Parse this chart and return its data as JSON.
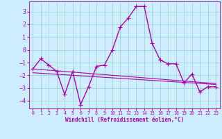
{
  "x": [
    0,
    1,
    2,
    3,
    4,
    5,
    6,
    7,
    8,
    9,
    10,
    11,
    12,
    13,
    14,
    15,
    16,
    17,
    18,
    19,
    20,
    21,
    22,
    23
  ],
  "line1": [
    -1.5,
    -0.7,
    -1.2,
    -1.7,
    -3.5,
    -1.7,
    -4.3,
    -2.9,
    -1.3,
    -1.2,
    0.0,
    1.8,
    2.5,
    3.4,
    3.4,
    0.5,
    -0.8,
    -1.1,
    -1.1,
    -2.6,
    -1.9,
    -3.3,
    -2.9,
    -2.9
  ],
  "line2": [
    -1.5,
    -1.55,
    -1.6,
    -1.65,
    -1.7,
    -1.75,
    -1.8,
    -1.85,
    -1.9,
    -1.95,
    -2.0,
    -2.05,
    -2.1,
    -2.15,
    -2.2,
    -2.25,
    -2.3,
    -2.35,
    -2.4,
    -2.45,
    -2.5,
    -2.55,
    -2.6,
    -2.65
  ],
  "line3": [
    -1.8,
    -1.84,
    -1.88,
    -1.92,
    -1.96,
    -2.0,
    -2.04,
    -2.08,
    -2.12,
    -2.16,
    -2.2,
    -2.24,
    -2.28,
    -2.32,
    -2.36,
    -2.4,
    -2.44,
    -2.48,
    -2.52,
    -2.56,
    -2.6,
    -2.64,
    -2.68,
    -2.72
  ],
  "color": "#aa00aa",
  "background": "#cceeff",
  "grid_color": "#99cccc",
  "xlabel": "Windchill (Refroidissement éolien,°C)",
  "ylim": [
    -4.6,
    3.8
  ],
  "xlim": [
    -0.5,
    23.5
  ],
  "yticks": [
    -4,
    -3,
    -2,
    -1,
    0,
    1,
    2,
    3
  ],
  "xticks": [
    0,
    1,
    2,
    3,
    4,
    5,
    6,
    7,
    8,
    9,
    10,
    11,
    12,
    13,
    14,
    15,
    16,
    17,
    18,
    19,
    20,
    21,
    22,
    23
  ],
  "marker_size": 2.5,
  "lw_main": 1.0,
  "lw_trend": 0.8
}
